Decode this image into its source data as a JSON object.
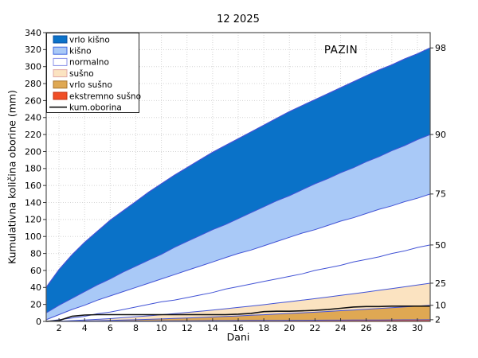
{
  "chart_data": {
    "type": "area",
    "title": "12 2025",
    "annotation": "PAZIN",
    "xlabel": "Dani",
    "ylabel": "Kumulativna koš... ",
    "ylabel_text": "Kumulativna količina oborine (mm)",
    "xlim": [
      1,
      31
    ],
    "ylim": [
      0,
      340
    ],
    "grid": true,
    "xticks": [
      2,
      4,
      6,
      8,
      10,
      12,
      14,
      16,
      18,
      20,
      22,
      24,
      26,
      28,
      30
    ],
    "yticks": [
      0,
      20,
      40,
      60,
      80,
      100,
      120,
      140,
      160,
      180,
      200,
      220,
      240,
      260,
      280,
      300,
      320,
      340
    ],
    "x": [
      1,
      2,
      3,
      4,
      5,
      6,
      7,
      8,
      9,
      10,
      11,
      12,
      13,
      14,
      15,
      16,
      17,
      18,
      19,
      20,
      21,
      22,
      23,
      24,
      25,
      26,
      27,
      28,
      29,
      30,
      31
    ],
    "percentiles": {
      "p98": [
        40,
        61,
        78,
        93,
        106,
        119,
        130,
        141,
        152,
        162,
        172,
        181,
        190,
        199,
        207,
        215,
        223,
        231,
        239,
        247,
        254,
        261,
        268,
        275,
        282,
        289,
        296,
        302,
        309,
        315,
        322
      ],
      "p90": [
        10,
        19,
        27,
        35,
        43,
        50,
        58,
        65,
        72,
        79,
        87,
        94,
        101,
        108,
        114,
        121,
        128,
        135,
        142,
        148,
        155,
        162,
        168,
        175,
        181,
        188,
        194,
        201,
        207,
        214,
        220
      ],
      "p75": [
        2,
        8,
        14,
        19,
        25,
        30,
        35,
        40,
        45,
        50,
        55,
        60,
        65,
        70,
        75,
        80,
        84,
        89,
        94,
        99,
        104,
        108,
        113,
        118,
        122,
        127,
        132,
        136,
        141,
        145,
        150
      ],
      "p50": [
        0,
        2,
        4,
        6,
        9,
        11,
        14,
        17,
        20,
        23,
        25,
        28,
        31,
        34,
        38,
        41,
        44,
        47,
        50,
        53,
        56,
        60,
        63,
        66,
        70,
        73,
        76,
        80,
        83,
        87,
        90
      ],
      "p25": [
        0,
        0.3,
        0.9,
        1.6,
        2.4,
        3.3,
        4.4,
        5.5,
        6.6,
        7.9,
        9.1,
        10.5,
        11.9,
        13.4,
        14.9,
        16.5,
        18.1,
        19.7,
        21.5,
        23.2,
        25,
        26.8,
        28.7,
        30.6,
        32.6,
        34.6,
        36.6,
        38.6,
        40.7,
        42.8,
        45
      ],
      "p10": [
        0,
        0.1,
        0.3,
        0.5,
        0.8,
        1.2,
        1.6,
        2,
        2.4,
        2.9,
        3.5,
        4,
        4.6,
        5.2,
        5.8,
        6.5,
        7.2,
        7.9,
        8.6,
        9.4,
        10.1,
        10.9,
        11.7,
        12.6,
        13.4,
        14.3,
        15.2,
        16.1,
        17.1,
        18,
        19
      ],
      "p2": [
        0,
        0.1,
        0.1,
        0.2,
        0.3,
        0.3,
        0.4,
        0.5,
        0.5,
        0.6,
        0.7,
        0.7,
        0.8,
        0.9,
        0.9,
        1,
        1.1,
        1.1,
        1.2,
        1.3,
        1.3,
        1.4,
        1.5,
        1.5,
        1.6,
        1.7,
        1.7,
        1.8,
        1.9,
        1.9,
        2
      ]
    },
    "percentile_order": [
      "p98",
      "p90",
      "p75",
      "p50",
      "p25",
      "p10",
      "p2"
    ],
    "right_axis_labels": [
      "98",
      "90",
      "75",
      "50",
      "25",
      "10",
      "2"
    ],
    "series": [
      {
        "name": "kum.oborina",
        "values": [
          0,
          1,
          6,
          7.5,
          8,
          8,
          8,
          8,
          8,
          8,
          8,
          8,
          8,
          8,
          8,
          8.5,
          9.5,
          11.5,
          12,
          12,
          12.5,
          13,
          14,
          15.5,
          17,
          17.5,
          17.5,
          18,
          18,
          18,
          18
        ]
      }
    ],
    "bands": [
      {
        "name": "vrlo kišno",
        "upper": "p98",
        "lower": "p90",
        "fill": "#0a72c8"
      },
      {
        "name": "kišno",
        "upper": "p90",
        "lower": "p75",
        "fill": "#a9c9f7"
      },
      {
        "name": "normalno",
        "upper": "p75",
        "lower": "p25",
        "fill": "#ffffff"
      },
      {
        "name": "sušno",
        "upper": "p25",
        "lower": "p10",
        "fill": "#fbe3c1"
      },
      {
        "name": "vrlo sušno",
        "upper": "p10",
        "lower": "p2",
        "fill": "#dfa853"
      },
      {
        "name": "ekstremno sušno",
        "upper": "p2",
        "lower": null,
        "fill": "#f04e26"
      }
    ],
    "colors": {
      "percentile_line": "#4253d5",
      "cumulative_line": "#111111",
      "grid": "#d4d4d4",
      "frame": "#555555"
    },
    "legend": [
      {
        "label": "vrlo kišno",
        "type": "patch",
        "fill": "#0a72c8",
        "stroke": "#0a4fa0"
      },
      {
        "label": "kišno",
        "type": "patch",
        "fill": "#a9c9f7",
        "stroke": "#4169e1"
      },
      {
        "label": "normalno",
        "type": "patch",
        "fill": "#ffffff",
        "stroke": "#8890e8"
      },
      {
        "label": "sušno",
        "type": "patch",
        "fill": "#fbe3c1",
        "stroke": "#e0a8a8"
      },
      {
        "label": "vrlo sušno",
        "type": "patch",
        "fill": "#dfa853",
        "stroke": "#a87430"
      },
      {
        "label": "ekstremno sušno",
        "type": "patch",
        "fill": "#f04e26",
        "stroke": "#c03010"
      },
      {
        "label": "kum.oborina",
        "type": "line",
        "stroke": "#111111"
      }
    ]
  }
}
